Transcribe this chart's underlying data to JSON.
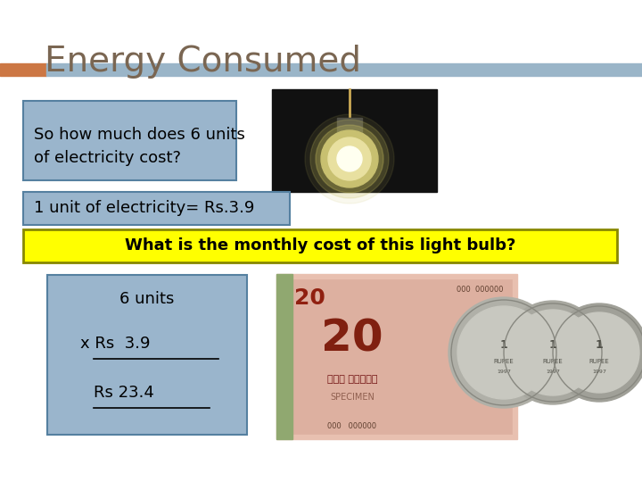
{
  "title": "Energy Consumed",
  "title_color": "#7a6652",
  "title_fontsize": 28,
  "bg_color": "#ffffff",
  "bar1_color": "#cc7744",
  "bar2_color": "#9ab5c8",
  "text1": "So how much does 6 units\nof electricity cost?",
  "text1_box_color": "#9ab5cc",
  "text1_fontsize": 13,
  "text2": "1 unit of electricity= Rs.3.9",
  "text2_box_color": "#9ab5cc",
  "text2_fontsize": 13,
  "text3": "What is the monthly cost of this light bulb?",
  "text3_box_color": "#ffff00",
  "text3_fontsize": 13,
  "text4_line1": "      6 units",
  "text4_line2": "x Rs   3.9",
  "text4_line3": "  Rs 23.4",
  "text4_box_color": "#9ab5cc",
  "text4_fontsize": 13
}
